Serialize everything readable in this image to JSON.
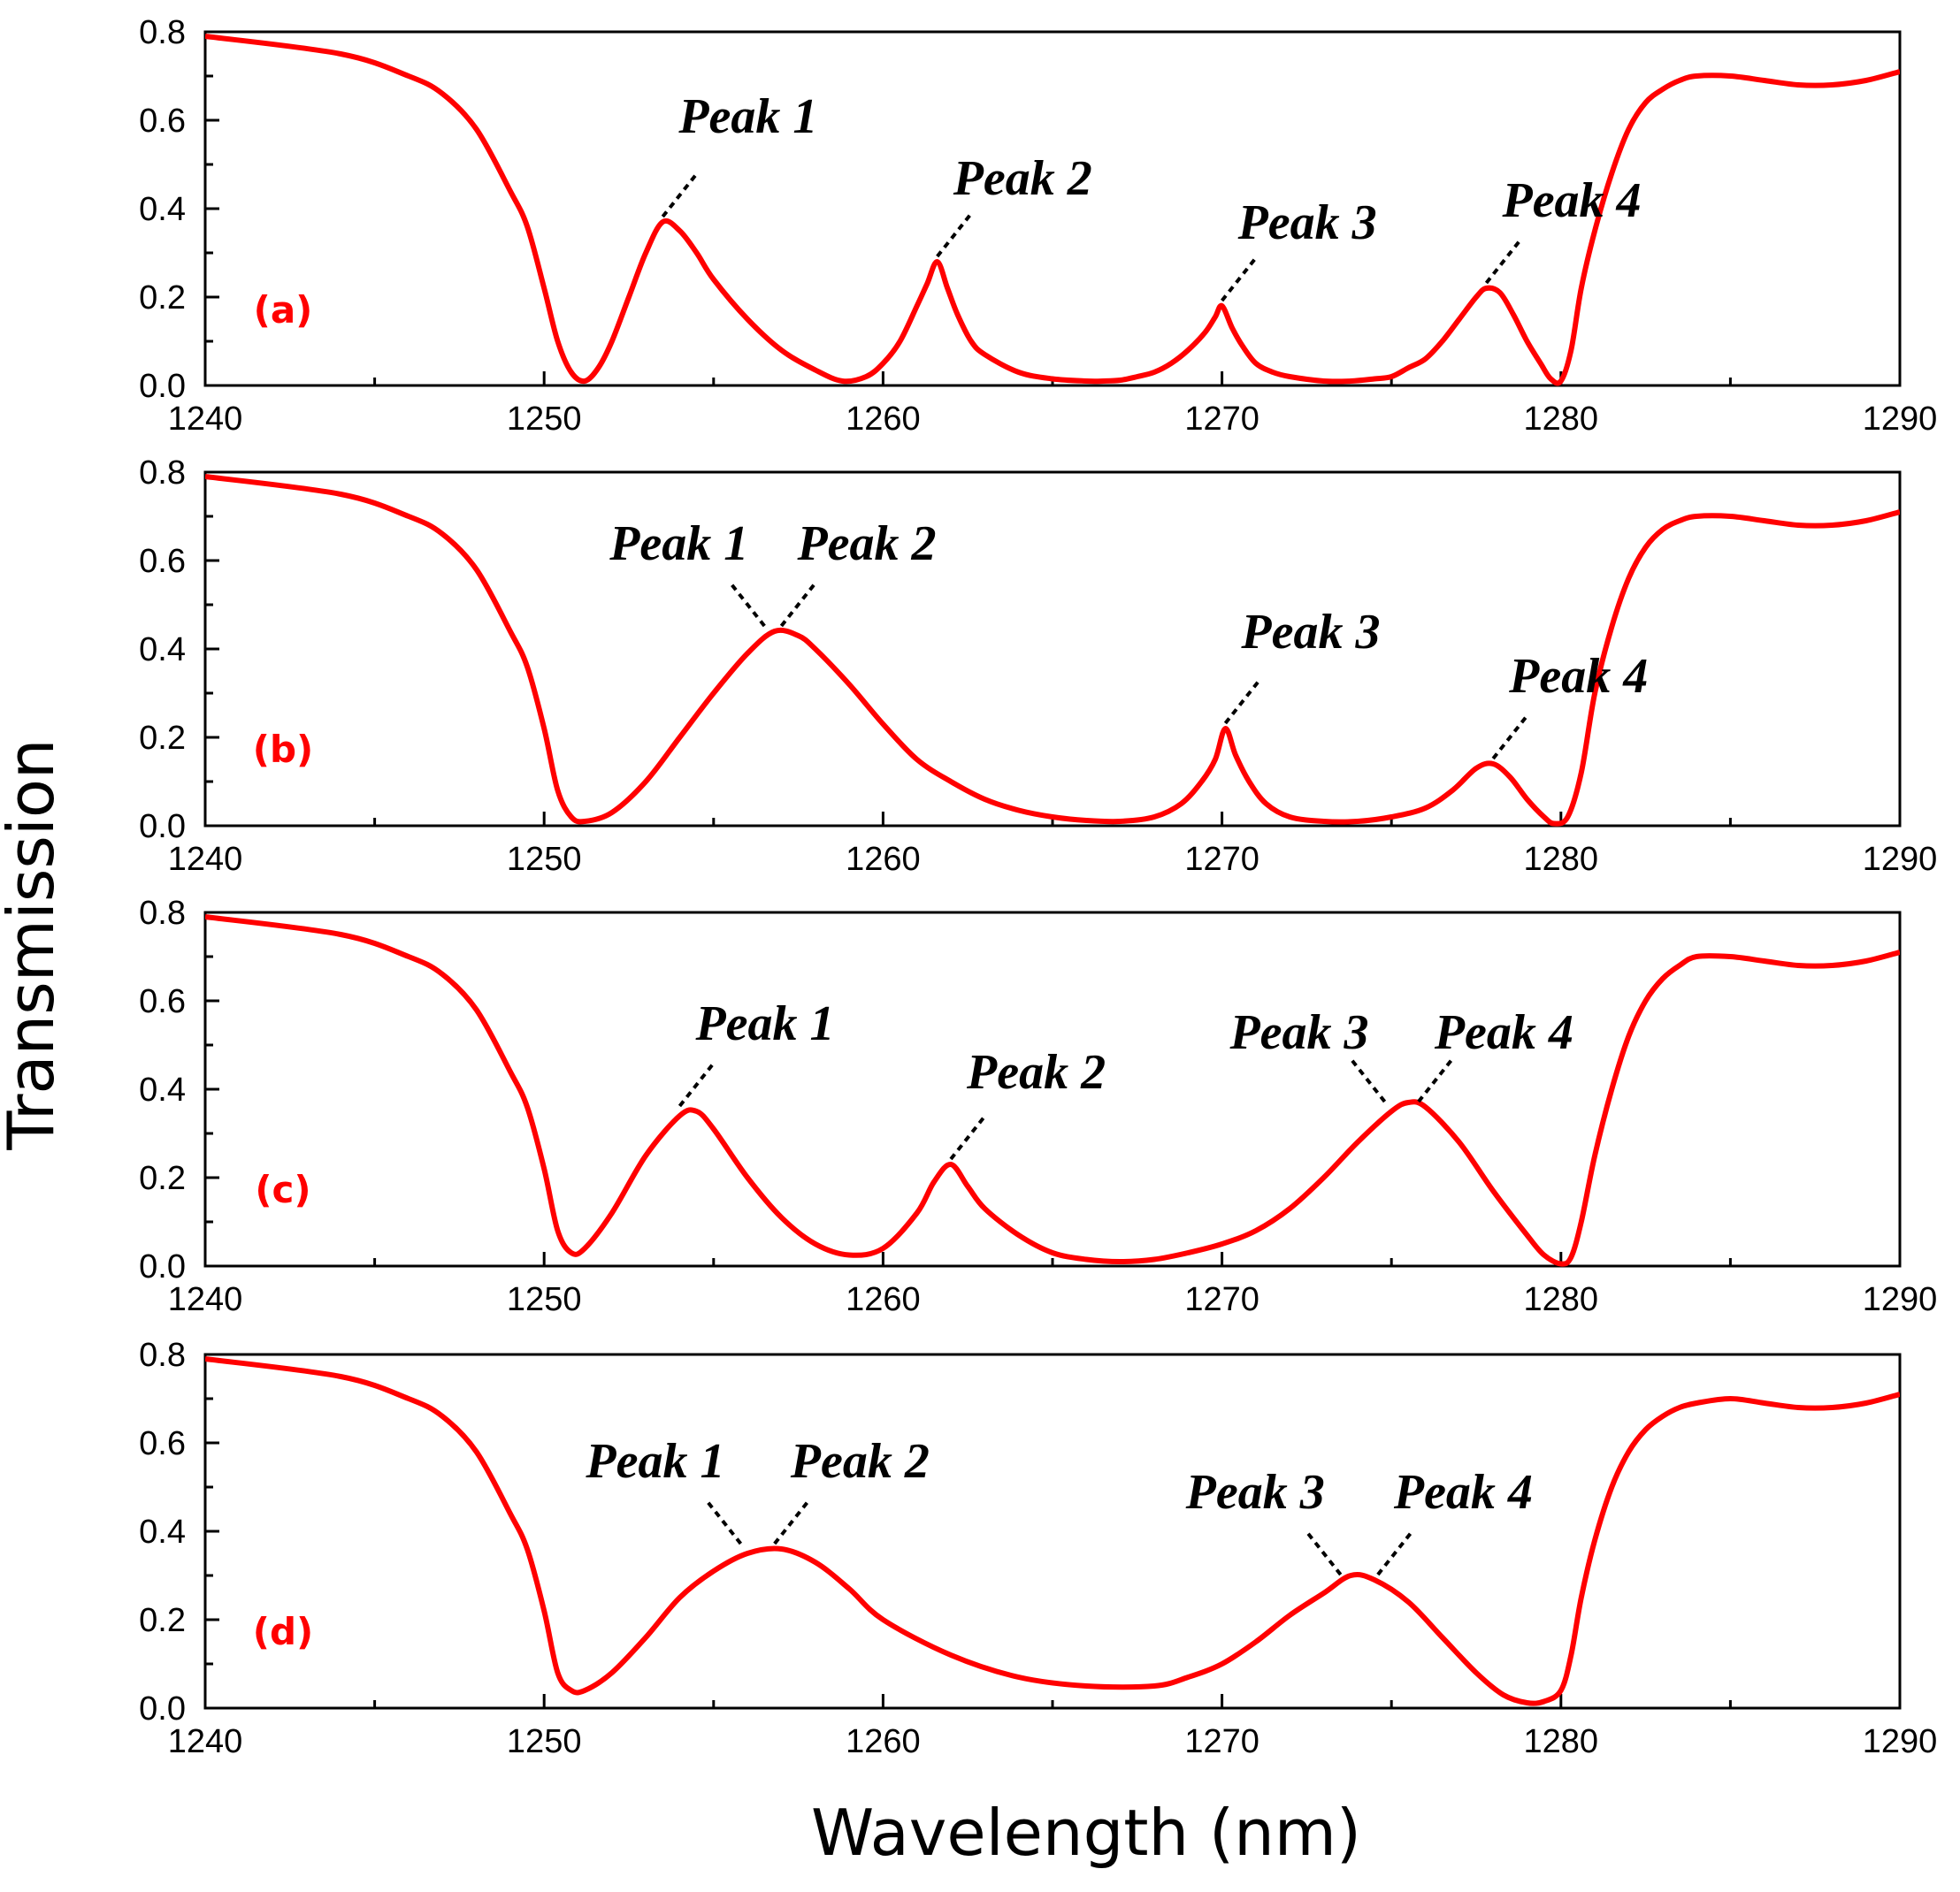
{
  "chart_data": {
    "type": "line",
    "xlabel": "Wavelength (nm)",
    "ylabel": "Transmission",
    "xlim": [
      1240,
      1290
    ],
    "ylim": [
      0,
      0.8
    ],
    "xticks": [
      1240,
      1250,
      1260,
      1270,
      1280,
      1290
    ],
    "yticks": [
      0.0,
      0.2,
      0.4,
      0.6,
      0.8
    ],
    "ytick_labels": [
      "0.0",
      "0.2",
      "0.4",
      "0.6",
      "0.8"
    ],
    "line_color": "#ff0000",
    "panels": [
      {
        "label": "(a)",
        "series": {
          "name": "(a)",
          "x": [
            1240,
            1244,
            1246,
            1247,
            1248,
            1249,
            1249.5,
            1250,
            1250.4,
            1250.8,
            1251.2,
            1251.6,
            1252,
            1252.5,
            1253,
            1253.5,
            1254,
            1254.5,
            1255,
            1256,
            1257,
            1258,
            1258.8,
            1259.5,
            1260,
            1260.5,
            1261,
            1261.3,
            1261.6,
            1261.9,
            1262.2,
            1262.6,
            1263,
            1264,
            1265,
            1266,
            1266.5,
            1267,
            1267.5,
            1268,
            1268.5,
            1269,
            1269.5,
            1269.8,
            1270,
            1270.3,
            1270.6,
            1271,
            1271.5,
            1272,
            1273,
            1273.8,
            1274.5,
            1275,
            1275.5,
            1276,
            1276.5,
            1277,
            1277.5,
            1277.8,
            1278.2,
            1278.6,
            1279,
            1279.4,
            1279.7,
            1280,
            1280.3,
            1280.6,
            1281,
            1281.5,
            1282,
            1282.5,
            1283,
            1283.5,
            1284,
            1285,
            1286,
            1287,
            1288,
            1289,
            1290
          ],
          "y": [
            0.79,
            0.75,
            0.7,
            0.66,
            0.58,
            0.44,
            0.36,
            0.22,
            0.1,
            0.03,
            0.01,
            0.04,
            0.1,
            0.2,
            0.3,
            0.37,
            0.35,
            0.3,
            0.24,
            0.15,
            0.08,
            0.035,
            0.01,
            0.02,
            0.05,
            0.1,
            0.18,
            0.23,
            0.28,
            0.22,
            0.16,
            0.1,
            0.07,
            0.03,
            0.015,
            0.01,
            0.01,
            0.012,
            0.02,
            0.03,
            0.05,
            0.08,
            0.12,
            0.155,
            0.18,
            0.13,
            0.09,
            0.05,
            0.03,
            0.02,
            0.01,
            0.01,
            0.015,
            0.02,
            0.04,
            0.06,
            0.1,
            0.15,
            0.2,
            0.22,
            0.21,
            0.16,
            0.1,
            0.05,
            0.015,
            0.01,
            0.08,
            0.22,
            0.35,
            0.48,
            0.58,
            0.64,
            0.67,
            0.69,
            0.7,
            0.7,
            0.69,
            0.68,
            0.68,
            0.69,
            0.71
          ]
        },
        "annotations": [
          {
            "text": "Peak 1",
            "x": 1253.5,
            "y": 0.37
          },
          {
            "text": "Peak 2",
            "x": 1261.6,
            "y": 0.28
          },
          {
            "text": "Peak 3",
            "x": 1270,
            "y": 0.18
          },
          {
            "text": "Peak 4",
            "x": 1277.8,
            "y": 0.22
          }
        ]
      },
      {
        "label": "(b)",
        "series": {
          "name": "(b)",
          "x": [
            1240,
            1244,
            1246,
            1247,
            1248,
            1249,
            1249.5,
            1250,
            1250.4,
            1250.8,
            1251.2,
            1252,
            1253,
            1254,
            1255,
            1256,
            1256.8,
            1257.5,
            1258,
            1259,
            1260,
            1261,
            1262,
            1263,
            1264,
            1265,
            1266,
            1267,
            1268,
            1268.8,
            1269.4,
            1269.8,
            1270.1,
            1270.4,
            1270.8,
            1271.3,
            1272,
            1273,
            1274,
            1275,
            1276,
            1276.8,
            1277.5,
            1278,
            1278.5,
            1279,
            1279.5,
            1279.8,
            1280.2,
            1280.6,
            1281,
            1281.5,
            1282,
            1282.5,
            1283,
            1283.5,
            1284,
            1285,
            1286,
            1287,
            1288,
            1289,
            1290
          ],
          "y": [
            0.79,
            0.75,
            0.7,
            0.66,
            0.58,
            0.44,
            0.36,
            0.22,
            0.08,
            0.02,
            0.01,
            0.03,
            0.1,
            0.2,
            0.3,
            0.39,
            0.44,
            0.43,
            0.4,
            0.32,
            0.23,
            0.15,
            0.1,
            0.06,
            0.035,
            0.02,
            0.012,
            0.01,
            0.02,
            0.05,
            0.1,
            0.15,
            0.22,
            0.16,
            0.1,
            0.05,
            0.02,
            0.01,
            0.01,
            0.02,
            0.04,
            0.08,
            0.13,
            0.14,
            0.11,
            0.06,
            0.02,
            0.005,
            0.02,
            0.12,
            0.3,
            0.45,
            0.56,
            0.63,
            0.67,
            0.69,
            0.7,
            0.7,
            0.69,
            0.68,
            0.68,
            0.69,
            0.71
          ]
        },
        "annotations": [
          {
            "text": "Peak 1",
            "x": 1256.5,
            "y": 0.44
          },
          {
            "text": "Peak 2",
            "x": 1257,
            "y": 0.44
          },
          {
            "text": "Peak 3",
            "x": 1270.1,
            "y": 0.22
          },
          {
            "text": "Peak 4",
            "x": 1278,
            "y": 0.14
          }
        ]
      },
      {
        "label": "(c)",
        "series": {
          "name": "(c)",
          "x": [
            1240,
            1244,
            1246,
            1247,
            1248,
            1249,
            1249.5,
            1250,
            1250.4,
            1250.8,
            1251.2,
            1252,
            1253,
            1254,
            1254.5,
            1255,
            1256,
            1257,
            1258,
            1259,
            1260,
            1261,
            1261.5,
            1262,
            1262.5,
            1263,
            1264,
            1265,
            1266,
            1267,
            1268,
            1269,
            1270,
            1271,
            1272,
            1273,
            1274,
            1275,
            1275.5,
            1276,
            1277,
            1278,
            1279,
            1279.5,
            1280,
            1280.3,
            1280.6,
            1281,
            1281.5,
            1282,
            1282.5,
            1283,
            1283.5,
            1284,
            1285,
            1286,
            1287,
            1288,
            1289,
            1290
          ],
          "y": [
            0.79,
            0.75,
            0.7,
            0.66,
            0.58,
            0.44,
            0.36,
            0.22,
            0.08,
            0.03,
            0.04,
            0.12,
            0.25,
            0.34,
            0.35,
            0.31,
            0.2,
            0.11,
            0.05,
            0.025,
            0.04,
            0.12,
            0.19,
            0.23,
            0.18,
            0.13,
            0.07,
            0.03,
            0.015,
            0.01,
            0.015,
            0.03,
            0.05,
            0.08,
            0.13,
            0.2,
            0.28,
            0.35,
            0.37,
            0.36,
            0.28,
            0.17,
            0.07,
            0.025,
            0.005,
            0.02,
            0.1,
            0.25,
            0.4,
            0.52,
            0.6,
            0.65,
            0.68,
            0.7,
            0.7,
            0.69,
            0.68,
            0.68,
            0.69,
            0.71
          ]
        },
        "annotations": [
          {
            "text": "Peak 1",
            "x": 1254,
            "y": 0.35
          },
          {
            "text": "Peak 2",
            "x": 1262,
            "y": 0.23
          },
          {
            "text": "Peak 3",
            "x": 1274.8,
            "y": 0.36
          },
          {
            "text": "Peak 4",
            "x": 1275.8,
            "y": 0.36
          }
        ]
      },
      {
        "label": "(d)",
        "series": {
          "name": "(d)",
          "x": [
            1240,
            1244,
            1246,
            1247,
            1248,
            1249,
            1249.5,
            1250,
            1250.4,
            1250.8,
            1251.2,
            1252,
            1253,
            1254,
            1255,
            1256,
            1257,
            1258,
            1259,
            1260,
            1262,
            1264,
            1266,
            1268,
            1269,
            1270,
            1271,
            1272,
            1273,
            1273.8,
            1274.5,
            1275.5,
            1276.5,
            1277.5,
            1278.3,
            1279,
            1279.5,
            1280,
            1280.3,
            1280.6,
            1281,
            1281.5,
            1282,
            1282.5,
            1283,
            1283.5,
            1284,
            1285,
            1286,
            1287,
            1288,
            1289,
            1290
          ],
          "y": [
            0.79,
            0.75,
            0.7,
            0.66,
            0.58,
            0.44,
            0.36,
            0.22,
            0.08,
            0.04,
            0.04,
            0.08,
            0.16,
            0.25,
            0.31,
            0.35,
            0.36,
            0.33,
            0.27,
            0.2,
            0.12,
            0.07,
            0.05,
            0.05,
            0.07,
            0.1,
            0.15,
            0.21,
            0.26,
            0.3,
            0.29,
            0.24,
            0.16,
            0.08,
            0.03,
            0.012,
            0.015,
            0.04,
            0.12,
            0.25,
            0.38,
            0.5,
            0.58,
            0.63,
            0.66,
            0.68,
            0.69,
            0.7,
            0.69,
            0.68,
            0.68,
            0.69,
            0.71
          ]
        },
        "annotations": [
          {
            "text": "Peak 1",
            "x": 1255.8,
            "y": 0.36
          },
          {
            "text": "Peak 2",
            "x": 1256.8,
            "y": 0.36
          },
          {
            "text": "Peak 3",
            "x": 1273.5,
            "y": 0.29
          },
          {
            "text": "Peak 4",
            "x": 1274.6,
            "y": 0.29
          }
        ]
      }
    ]
  }
}
